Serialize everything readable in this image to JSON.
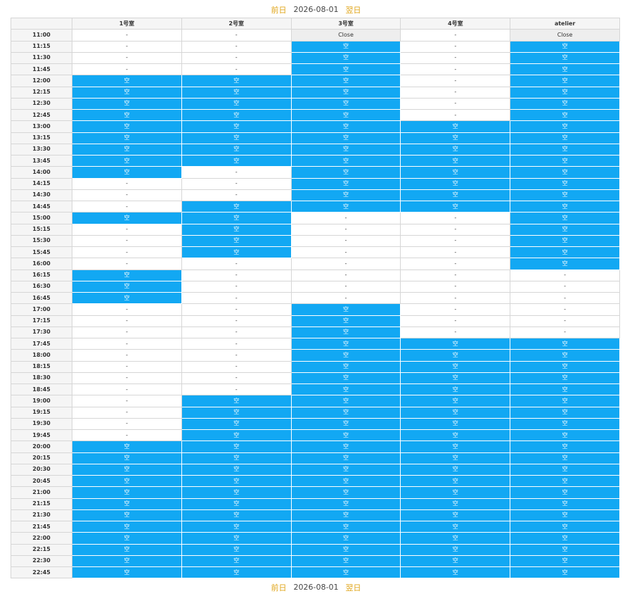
{
  "nav": {
    "prev_label": "前日",
    "date": "2026-08-01",
    "next_label": "翌日"
  },
  "colors": {
    "available": "#12a8f3",
    "unavailable": "#ffffff",
    "closed": "#eeeeee",
    "nav_link": "#e0a51a"
  },
  "table": {
    "time_header": "",
    "rooms": [
      "1号室",
      "2号室",
      "3号室",
      "4号室",
      "atelier"
    ],
    "legend": {
      "A": "空",
      "N": "-",
      "C": "Close"
    },
    "rows": [
      {
        "time": "11:00",
        "cells": [
          "N",
          "N",
          "C",
          "N",
          "C"
        ]
      },
      {
        "time": "11:15",
        "cells": [
          "N",
          "N",
          "A",
          "N",
          "A"
        ]
      },
      {
        "time": "11:30",
        "cells": [
          "N",
          "N",
          "A",
          "N",
          "A"
        ]
      },
      {
        "time": "11:45",
        "cells": [
          "N",
          "N",
          "A",
          "N",
          "A"
        ]
      },
      {
        "time": "12:00",
        "cells": [
          "A",
          "A",
          "A",
          "N",
          "A"
        ]
      },
      {
        "time": "12:15",
        "cells": [
          "A",
          "A",
          "A",
          "N",
          "A"
        ]
      },
      {
        "time": "12:30",
        "cells": [
          "A",
          "A",
          "A",
          "N",
          "A"
        ]
      },
      {
        "time": "12:45",
        "cells": [
          "A",
          "A",
          "A",
          "N",
          "A"
        ]
      },
      {
        "time": "13:00",
        "cells": [
          "A",
          "A",
          "A",
          "A",
          "A"
        ]
      },
      {
        "time": "13:15",
        "cells": [
          "A",
          "A",
          "A",
          "A",
          "A"
        ]
      },
      {
        "time": "13:30",
        "cells": [
          "A",
          "A",
          "A",
          "A",
          "A"
        ]
      },
      {
        "time": "13:45",
        "cells": [
          "A",
          "A",
          "A",
          "A",
          "A"
        ]
      },
      {
        "time": "14:00",
        "cells": [
          "A",
          "N",
          "A",
          "A",
          "A"
        ]
      },
      {
        "time": "14:15",
        "cells": [
          "N",
          "N",
          "A",
          "A",
          "A"
        ]
      },
      {
        "time": "14:30",
        "cells": [
          "N",
          "N",
          "A",
          "A",
          "A"
        ]
      },
      {
        "time": "14:45",
        "cells": [
          "N",
          "A",
          "A",
          "A",
          "A"
        ]
      },
      {
        "time": "15:00",
        "cells": [
          "A",
          "A",
          "N",
          "N",
          "A"
        ]
      },
      {
        "time": "15:15",
        "cells": [
          "N",
          "A",
          "N",
          "N",
          "A"
        ]
      },
      {
        "time": "15:30",
        "cells": [
          "N",
          "A",
          "N",
          "N",
          "A"
        ]
      },
      {
        "time": "15:45",
        "cells": [
          "N",
          "A",
          "N",
          "N",
          "A"
        ]
      },
      {
        "time": "16:00",
        "cells": [
          "N",
          "N",
          "N",
          "N",
          "A"
        ]
      },
      {
        "time": "16:15",
        "cells": [
          "A",
          "N",
          "N",
          "N",
          "N"
        ]
      },
      {
        "time": "16:30",
        "cells": [
          "A",
          "N",
          "N",
          "N",
          "N"
        ]
      },
      {
        "time": "16:45",
        "cells": [
          "A",
          "N",
          "N",
          "N",
          "N"
        ]
      },
      {
        "time": "17:00",
        "cells": [
          "N",
          "N",
          "A",
          "N",
          "N"
        ]
      },
      {
        "time": "17:15",
        "cells": [
          "N",
          "N",
          "A",
          "N",
          "N"
        ]
      },
      {
        "time": "17:30",
        "cells": [
          "N",
          "N",
          "A",
          "N",
          "N"
        ]
      },
      {
        "time": "17:45",
        "cells": [
          "N",
          "N",
          "A",
          "A",
          "A"
        ]
      },
      {
        "time": "18:00",
        "cells": [
          "N",
          "N",
          "A",
          "A",
          "A"
        ]
      },
      {
        "time": "18:15",
        "cells": [
          "N",
          "N",
          "A",
          "A",
          "A"
        ]
      },
      {
        "time": "18:30",
        "cells": [
          "N",
          "N",
          "A",
          "A",
          "A"
        ]
      },
      {
        "time": "18:45",
        "cells": [
          "N",
          "N",
          "A",
          "A",
          "A"
        ]
      },
      {
        "time": "19:00",
        "cells": [
          "N",
          "A",
          "A",
          "A",
          "A"
        ]
      },
      {
        "time": "19:15",
        "cells": [
          "N",
          "A",
          "A",
          "A",
          "A"
        ]
      },
      {
        "time": "19:30",
        "cells": [
          "N",
          "A",
          "A",
          "A",
          "A"
        ]
      },
      {
        "time": "19:45",
        "cells": [
          "N",
          "A",
          "A",
          "A",
          "A"
        ]
      },
      {
        "time": "20:00",
        "cells": [
          "A",
          "A",
          "A",
          "A",
          "A"
        ]
      },
      {
        "time": "20:15",
        "cells": [
          "A",
          "A",
          "A",
          "A",
          "A"
        ]
      },
      {
        "time": "20:30",
        "cells": [
          "A",
          "A",
          "A",
          "A",
          "A"
        ]
      },
      {
        "time": "20:45",
        "cells": [
          "A",
          "A",
          "A",
          "A",
          "A"
        ]
      },
      {
        "time": "21:00",
        "cells": [
          "A",
          "A",
          "A",
          "A",
          "A"
        ]
      },
      {
        "time": "21:15",
        "cells": [
          "A",
          "A",
          "A",
          "A",
          "A"
        ]
      },
      {
        "time": "21:30",
        "cells": [
          "A",
          "A",
          "A",
          "A",
          "A"
        ]
      },
      {
        "time": "21:45",
        "cells": [
          "A",
          "A",
          "A",
          "A",
          "A"
        ]
      },
      {
        "time": "22:00",
        "cells": [
          "A",
          "A",
          "A",
          "A",
          "A"
        ]
      },
      {
        "time": "22:15",
        "cells": [
          "A",
          "A",
          "A",
          "A",
          "A"
        ]
      },
      {
        "time": "22:30",
        "cells": [
          "A",
          "A",
          "A",
          "A",
          "A"
        ]
      },
      {
        "time": "22:45",
        "cells": [
          "A",
          "A",
          "A",
          "A",
          "A"
        ]
      }
    ]
  }
}
